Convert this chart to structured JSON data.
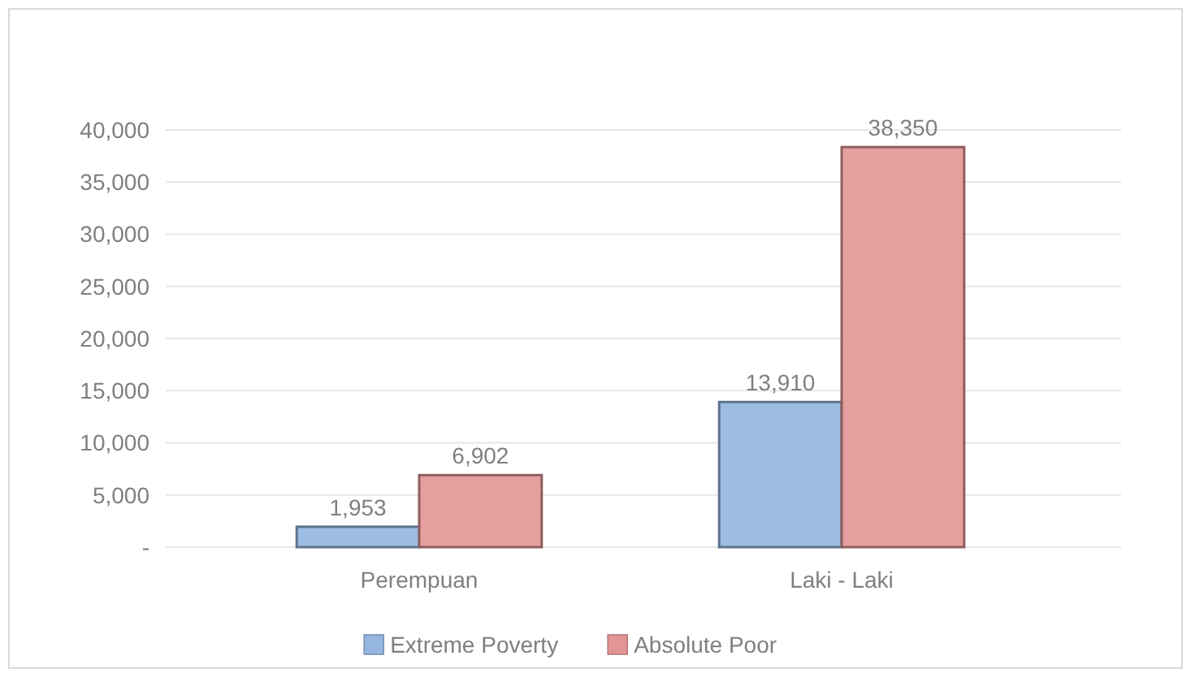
{
  "chart_data": {
    "type": "bar",
    "categories": [
      "Perempuan",
      "Laki - Laki"
    ],
    "series": [
      {
        "name": "Extreme Poverty",
        "color": "#94b6e0",
        "values": [
          1953,
          13910
        ],
        "value_labels": [
          "1,953",
          "13,910"
        ]
      },
      {
        "name": "Absolute Poor",
        "color": "#e39595",
        "values": [
          6902,
          38350
        ],
        "value_labels": [
          "6,902",
          "38,350"
        ]
      }
    ],
    "ylim": [
      0,
      40000
    ],
    "yticks": [
      {
        "value": 0,
        "label": "-"
      },
      {
        "value": 5000,
        "label": "5,000"
      },
      {
        "value": 10000,
        "label": "10,000"
      },
      {
        "value": 15000,
        "label": "15,000"
      },
      {
        "value": 20000,
        "label": "20,000"
      },
      {
        "value": 25000,
        "label": "25,000"
      },
      {
        "value": 30000,
        "label": "30,000"
      },
      {
        "value": 35000,
        "label": "35,000"
      },
      {
        "value": 40000,
        "label": "40,000"
      }
    ],
    "grid": "y",
    "legend": "bottom"
  }
}
